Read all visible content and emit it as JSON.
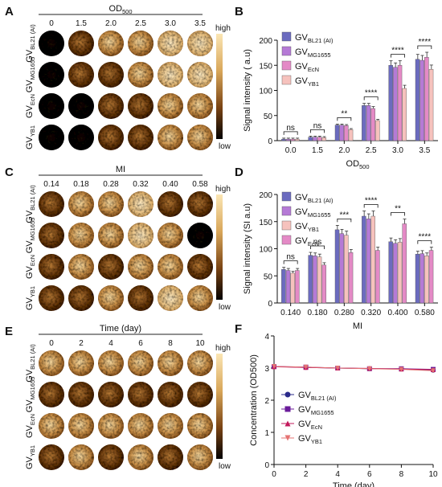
{
  "colors": {
    "bl21": "#6b6bbf",
    "mg1655": "#b57ad6",
    "ecn": "#e48ac6",
    "yb1": "#f6c2bd",
    "line": "#3b2a8a"
  },
  "panels": {
    "A": {
      "letter": "A",
      "title": "OD",
      "title_sub": "500",
      "columns": [
        "0",
        "1.5",
        "2.0",
        "2.5",
        "3.0",
        "3.5"
      ],
      "rows": [
        {
          "main": "GV",
          "sub": "BL21 (AI)"
        },
        {
          "main": "GV",
          "sub": "MG1655"
        },
        {
          "main": "GV",
          "sub": "EcN"
        },
        {
          "main": "GV",
          "sub": "YB1"
        }
      ],
      "scale_high": "high",
      "scale_low": "low"
    },
    "C": {
      "letter": "C",
      "title": "MI",
      "columns": [
        "0.14",
        "0.18",
        "0.28",
        "0.32",
        "0.40",
        "0.58"
      ],
      "rows": [
        {
          "main": "GV",
          "sub": "BL21 (AI)"
        },
        {
          "main": "GV",
          "sub": "MG1655"
        },
        {
          "main": "GV",
          "sub": "EcN"
        },
        {
          "main": "GV",
          "sub": "YB1"
        }
      ],
      "scale_high": "high",
      "scale_low": "low"
    },
    "E": {
      "letter": "E",
      "title": "Time (day)",
      "columns": [
        "0",
        "2",
        "4",
        "6",
        "8",
        "10"
      ],
      "rows": [
        {
          "main": "GV",
          "sub": "BL21 (AI)"
        },
        {
          "main": "GV",
          "sub": "MG1655"
        },
        {
          "main": "GV",
          "sub": "EcN"
        },
        {
          "main": "GV",
          "sub": "YB1"
        }
      ],
      "scale_high": "high",
      "scale_low": "low"
    }
  },
  "chart_data": [
    {
      "panel": "B",
      "type": "bar",
      "ylabel": "Signal intensity ( a.u)",
      "xlabel": "OD",
      "xlabel_sub": "500",
      "categories": [
        "0.0",
        "1.5",
        "2.0",
        "2.5",
        "3.0",
        "3.5"
      ],
      "ylim": [
        0,
        200
      ],
      "yticks": [
        0,
        50,
        100,
        150,
        200
      ],
      "series": [
        {
          "name": "GV",
          "sub": "BL21 (AI)",
          "color": "#6b6bbf",
          "values": [
            3,
            7,
            31,
            70,
            150,
            162
          ]
        },
        {
          "name": "GV",
          "sub": "MG1655",
          "color": "#b57ad6",
          "values": [
            3,
            7,
            31,
            70,
            146,
            160
          ]
        },
        {
          "name": "GV",
          "sub": "EcN",
          "color": "#e48ac6",
          "values": [
            3,
            7,
            30,
            64,
            150,
            166
          ]
        },
        {
          "name": "GV",
          "sub": "YB1",
          "color": "#f6c2bd",
          "values": [
            3,
            6,
            22,
            40,
            104,
            142
          ]
        }
      ],
      "significance": [
        {
          "category": "0.0",
          "label": "ns"
        },
        {
          "category": "1.5",
          "label": "ns"
        },
        {
          "category": "2.0",
          "label": "**"
        },
        {
          "category": "2.5",
          "label": "****"
        },
        {
          "category": "3.0",
          "label": "****"
        },
        {
          "category": "3.5",
          "label": "****"
        }
      ]
    },
    {
      "panel": "D",
      "type": "bar",
      "ylabel": "Signal intensity (SI a.u)",
      "xlabel": "MI",
      "categories": [
        "0.140",
        "0.180",
        "0.280",
        "0.320",
        "0.400",
        "0.580"
      ],
      "ylim": [
        0,
        200
      ],
      "yticks": [
        0,
        50,
        100,
        150,
        200
      ],
      "series": [
        {
          "name": "GV",
          "sub": "BL21 (AI)",
          "color": "#6b6bbf",
          "values": [
            62,
            88,
            135,
            160,
            113,
            90
          ]
        },
        {
          "name": "GV",
          "sub": "MG1655",
          "color": "#b57ad6",
          "values": [
            60,
            87,
            128,
            155,
            110,
            91
          ]
        },
        {
          "name": "GV",
          "sub": "YB1",
          "color": "#f6c2bd",
          "values": [
            55,
            85,
            125,
            160,
            112,
            87
          ]
        },
        {
          "name": "GV",
          "sub": "EcN",
          "color": "#e48ac6",
          "values": [
            60,
            70,
            93,
            97,
            146,
            97
          ]
        }
      ],
      "significance": [
        {
          "category": "0.140",
          "label": "ns"
        },
        {
          "category": "0.180",
          "label": "ns"
        },
        {
          "category": "0.280",
          "label": "***"
        },
        {
          "category": "0.320",
          "label": "****"
        },
        {
          "category": "0.400",
          "label": "**"
        },
        {
          "category": "0.580",
          "label": "****"
        }
      ]
    },
    {
      "panel": "F",
      "type": "line",
      "ylabel": "Concentration (OD500)",
      "xlabel": "Time (day)",
      "x": [
        0,
        2,
        4,
        6,
        8,
        10
      ],
      "xlim": [
        0,
        10
      ],
      "ylim": [
        0,
        4
      ],
      "xticks": [
        0,
        2,
        4,
        6,
        8,
        10
      ],
      "yticks": [
        0,
        1,
        2,
        3,
        4
      ],
      "series": [
        {
          "name": "GV",
          "sub": "BL21 (AI)",
          "marker": "circle",
          "color": "#2a2a8a",
          "values": [
            3.05,
            3.02,
            3.0,
            2.98,
            2.97,
            2.93
          ]
        },
        {
          "name": "GV",
          "sub": "MG1655",
          "marker": "square",
          "color": "#6a1b9a",
          "values": [
            3.05,
            3.03,
            3.0,
            2.98,
            2.98,
            2.96
          ]
        },
        {
          "name": "GV",
          "sub": "EcN",
          "marker": "triangle-up",
          "color": "#c2185b",
          "values": [
            3.04,
            3.02,
            3.0,
            2.99,
            2.97,
            2.95
          ]
        },
        {
          "name": "GV",
          "sub": "YB1",
          "marker": "triangle-down",
          "color": "#e57373",
          "values": [
            3.05,
            3.03,
            3.0,
            2.98,
            2.96,
            2.92
          ]
        }
      ]
    }
  ]
}
